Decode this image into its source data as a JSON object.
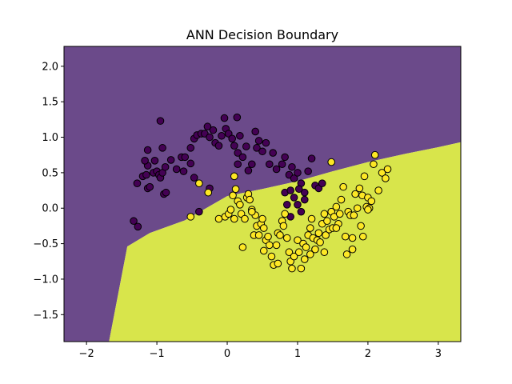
{
  "chart_data": {
    "type": "scatter",
    "title": "ANN Decision Boundary",
    "xlabel": "",
    "ylabel": "",
    "xlim": [
      -2.32,
      3.32
    ],
    "ylim": [
      -1.88,
      2.28
    ],
    "xticks": [
      -2,
      -1,
      0,
      1,
      2,
      3
    ],
    "yticks": [
      -1.5,
      -1.0,
      -0.5,
      0.0,
      0.5,
      1.0,
      1.5,
      2.0
    ],
    "xtick_labels": [
      "−2",
      "−1",
      "0",
      "1",
      "2",
      "3"
    ],
    "ytick_labels": [
      "−1.5",
      "−1.0",
      "−0.5",
      "0.0",
      "0.5",
      "1.0",
      "1.5",
      "2.0"
    ],
    "grid": false,
    "legend": "none",
    "regions": {
      "class_0_color": "#6b4a8a",
      "class_1_color": "#d8e54b",
      "boundary": [
        [
          -1.68,
          -1.88
        ],
        [
          -1.42,
          -0.54
        ],
        [
          -1.1,
          -0.35
        ],
        [
          -0.6,
          -0.17
        ],
        [
          0.0,
          0.17
        ],
        [
          0.5,
          0.27
        ],
        [
          1.0,
          0.38
        ],
        [
          1.5,
          0.52
        ],
        [
          2.0,
          0.65
        ],
        [
          2.5,
          0.76
        ],
        [
          3.0,
          0.86
        ],
        [
          3.32,
          0.93
        ]
      ]
    },
    "series": [
      {
        "color": "#440154",
        "points": [
          [
            -1.33,
            -0.18
          ],
          [
            -1.27,
            -0.26
          ],
          [
            -1.28,
            0.35
          ],
          [
            -1.2,
            0.45
          ],
          [
            -1.15,
            0.47
          ],
          [
            -1.13,
            0.28
          ],
          [
            -1.1,
            0.3
          ],
          [
            -1.13,
            0.6
          ],
          [
            -1.17,
            0.67
          ],
          [
            -1.13,
            0.82
          ],
          [
            -1.05,
            0.5
          ],
          [
            -1.03,
            0.67
          ],
          [
            -1.0,
            0.52
          ],
          [
            -0.97,
            0.47
          ],
          [
            -0.95,
            0.43
          ],
          [
            -0.92,
            0.5
          ],
          [
            -0.9,
            0.2
          ],
          [
            -0.87,
            0.22
          ],
          [
            -0.92,
            0.85
          ],
          [
            -0.95,
            1.23
          ],
          [
            -0.88,
            0.58
          ],
          [
            -0.8,
            0.68
          ],
          [
            -0.72,
            0.55
          ],
          [
            -0.65,
            0.72
          ],
          [
            -0.6,
            0.72
          ],
          [
            -0.52,
            0.63
          ],
          [
            -0.47,
            0.43
          ],
          [
            -0.52,
            0.85
          ],
          [
            -0.47,
            0.98
          ],
          [
            -0.43,
            1.03
          ],
          [
            -0.37,
            1.05
          ],
          [
            -0.32,
            1.05
          ],
          [
            -0.28,
            1.15
          ],
          [
            -0.25,
            1.0
          ],
          [
            -0.2,
            1.1
          ],
          [
            -0.17,
            0.92
          ],
          [
            -0.12,
            0.88
          ],
          [
            -0.08,
            1.02
          ],
          [
            -0.04,
            1.27
          ],
          [
            -0.02,
            1.12
          ],
          [
            0.02,
            1.05
          ],
          [
            0.07,
            0.98
          ],
          [
            0.1,
            0.88
          ],
          [
            0.14,
            1.28
          ],
          [
            0.15,
            0.78
          ],
          [
            0.18,
            1.02
          ],
          [
            0.22,
            0.72
          ],
          [
            0.27,
            0.87
          ],
          [
            0.3,
            0.53
          ],
          [
            0.35,
            0.62
          ],
          [
            0.4,
            1.08
          ],
          [
            0.42,
            0.85
          ],
          [
            0.45,
            0.95
          ],
          [
            0.5,
            0.8
          ],
          [
            0.55,
            0.92
          ],
          [
            0.6,
            0.62
          ],
          [
            0.65,
            0.78
          ],
          [
            0.7,
            0.55
          ],
          [
            0.78,
            0.62
          ],
          [
            0.82,
            0.72
          ],
          [
            0.88,
            0.47
          ],
          [
            0.92,
            0.58
          ],
          [
            0.95,
            0.42
          ],
          [
            1.0,
            0.5
          ],
          [
            1.05,
            0.35
          ],
          [
            1.1,
            0.22
          ],
          [
            1.15,
            0.52
          ],
          [
            1.2,
            0.7
          ],
          [
            1.25,
            0.32
          ],
          [
            1.3,
            0.28
          ],
          [
            0.82,
            0.22
          ],
          [
            0.9,
            0.25
          ],
          [
            0.95,
            0.15
          ],
          [
            1.0,
            0.05
          ],
          [
            1.05,
            -0.05
          ],
          [
            1.1,
            0.12
          ],
          [
            0.85,
            0.05
          ],
          [
            0.9,
            -0.12
          ],
          [
            -0.62,
            0.52
          ],
          [
            -0.25,
            0.28
          ],
          [
            -0.4,
            -0.05
          ],
          [
            0.15,
            0.62
          ],
          [
            1.35,
            0.35
          ],
          [
            1.02,
            0.27
          ]
        ]
      },
      {
        "color": "#fde725",
        "points": [
          [
            -0.52,
            -0.12
          ],
          [
            -0.4,
            0.35
          ],
          [
            -0.27,
            0.22
          ],
          [
            -0.12,
            -0.15
          ],
          [
            -0.03,
            -0.12
          ],
          [
            0.02,
            -0.08
          ],
          [
            0.05,
            -0.02
          ],
          [
            0.08,
            0.18
          ],
          [
            0.1,
            0.45
          ],
          [
            0.12,
            0.27
          ],
          [
            0.15,
            0.1
          ],
          [
            0.18,
            0.05
          ],
          [
            0.2,
            -0.08
          ],
          [
            0.25,
            -0.15
          ],
          [
            0.28,
            0.15
          ],
          [
            0.3,
            0.2
          ],
          [
            0.32,
            0.12
          ],
          [
            0.35,
            -0.02
          ],
          [
            0.38,
            -0.38
          ],
          [
            0.4,
            -0.1
          ],
          [
            0.42,
            -0.25
          ],
          [
            0.45,
            -0.38
          ],
          [
            0.48,
            -0.22
          ],
          [
            0.5,
            -0.15
          ],
          [
            0.52,
            -0.28
          ],
          [
            0.55,
            -0.45
          ],
          [
            0.58,
            -0.4
          ],
          [
            0.6,
            -0.52
          ],
          [
            0.63,
            -0.68
          ],
          [
            0.66,
            -0.8
          ],
          [
            0.7,
            -0.52
          ],
          [
            0.72,
            -0.35
          ],
          [
            0.75,
            -0.38
          ],
          [
            0.78,
            -0.18
          ],
          [
            0.8,
            -0.25
          ],
          [
            0.82,
            -0.08
          ],
          [
            0.85,
            -0.42
          ],
          [
            0.88,
            -0.62
          ],
          [
            0.9,
            -0.75
          ],
          [
            0.92,
            -0.85
          ],
          [
            0.95,
            -0.68
          ],
          [
            1.0,
            -0.45
          ],
          [
            1.02,
            -0.62
          ],
          [
            1.05,
            -0.85
          ],
          [
            1.08,
            -0.5
          ],
          [
            1.1,
            -0.72
          ],
          [
            1.12,
            -0.55
          ],
          [
            1.15,
            -0.38
          ],
          [
            1.18,
            -0.28
          ],
          [
            1.2,
            -0.15
          ],
          [
            1.22,
            -0.42
          ],
          [
            1.25,
            -0.58
          ],
          [
            1.28,
            -0.45
          ],
          [
            1.3,
            -0.35
          ],
          [
            1.32,
            -0.48
          ],
          [
            1.35,
            -0.22
          ],
          [
            1.38,
            -0.08
          ],
          [
            1.4,
            -0.38
          ],
          [
            1.42,
            -0.18
          ],
          [
            1.45,
            -0.3
          ],
          [
            1.48,
            -0.05
          ],
          [
            1.5,
            -0.28
          ],
          [
            1.52,
            -0.12
          ],
          [
            1.55,
            0.02
          ],
          [
            1.58,
            -0.22
          ],
          [
            1.6,
            -0.08
          ],
          [
            1.62,
            0.12
          ],
          [
            1.65,
            0.3
          ],
          [
            1.68,
            -0.4
          ],
          [
            1.7,
            -0.65
          ],
          [
            1.72,
            -0.05
          ],
          [
            1.75,
            -0.1
          ],
          [
            1.78,
            -0.58
          ],
          [
            1.8,
            -0.1
          ],
          [
            1.82,
            0.2
          ],
          [
            1.85,
            0.0
          ],
          [
            1.88,
            0.28
          ],
          [
            1.9,
            -0.25
          ],
          [
            1.92,
            0.18
          ],
          [
            1.95,
            0.45
          ],
          [
            1.98,
            0.02
          ],
          [
            2.0,
            0.15
          ],
          [
            2.02,
            0.0
          ],
          [
            2.05,
            0.1
          ],
          [
            2.08,
            0.62
          ],
          [
            2.1,
            0.75
          ],
          [
            2.15,
            0.25
          ],
          [
            2.2,
            0.5
          ],
          [
            2.25,
            0.42
          ],
          [
            2.28,
            0.55
          ],
          [
            1.78,
            -0.42
          ],
          [
            2.0,
            -0.02
          ],
          [
            1.93,
            -0.4
          ],
          [
            1.55,
            -0.28
          ],
          [
            1.48,
            0.65
          ],
          [
            0.72,
            -0.78
          ],
          [
            0.52,
            -0.6
          ],
          [
            0.35,
            -0.05
          ],
          [
            0.22,
            -0.55
          ],
          [
            0.1,
            -0.15
          ],
          [
            1.18,
            -0.65
          ],
          [
            1.38,
            -0.62
          ]
        ]
      }
    ]
  }
}
